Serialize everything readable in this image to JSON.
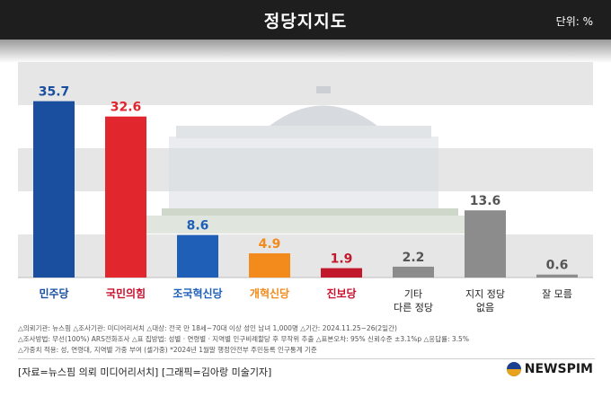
{
  "header": {
    "title": "정당지지도",
    "unit": "단위: %"
  },
  "chart_data": {
    "type": "bar",
    "categories": [
      "민주당",
      "국민의힘",
      "조국혁신당",
      "개혁신당",
      "진보당",
      "기타 다른 정당",
      "지지 정당 없음",
      "잘 모름"
    ],
    "values": [
      35.7,
      32.6,
      8.6,
      4.9,
      1.9,
      2.2,
      13.6,
      0.6
    ],
    "colors": [
      "#1a4fa0",
      "#e1262d",
      "#1f5fb8",
      "#f28a1c",
      "#c1182c",
      "#8c8c8c",
      "#8c8c8c",
      "#8c8c8c"
    ],
    "value_colors": [
      "#1a4fa0",
      "#e1262d",
      "#1f5fb8",
      "#f28a1c",
      "#c1182c",
      "#555555",
      "#555555",
      "#555555"
    ],
    "label_colors": [
      "#1a4fa0",
      "#c8102e",
      "#1f5fb8",
      "#f28a1c",
      "#c8102e",
      "#222222",
      "#222222",
      "#222222"
    ],
    "ylim": [
      0,
      40
    ],
    "grid": true
  },
  "notes": [
    "△의뢰기관: 뉴스핌  △조사기관: 미디어리서치  △대상: 전국 만 18세~70대 이상 성인 남녀 1,000명  △기간: 2024.11.25~26(2일간)",
    "△조사방법: 무선(100%) ARS전화조사  △표 집방법: 성별 · 연령별 · 지역별 인구비례할당 후 무작위 추출  △표본오차: 95% 신뢰수준 ±3.1%p  △응답률: 3.5%",
    "△가중치 적용: 성, 연령대, 지역별 가중 부여 (셀가중) *2024년 1월말 행정안전부 주민등록 인구통계 기준"
  ],
  "footer": {
    "source": "[자료=뉴스핌 의뢰 미디어리서치] [그래픽=김아랑 미술기자]",
    "brand": "NEWSPIM"
  }
}
